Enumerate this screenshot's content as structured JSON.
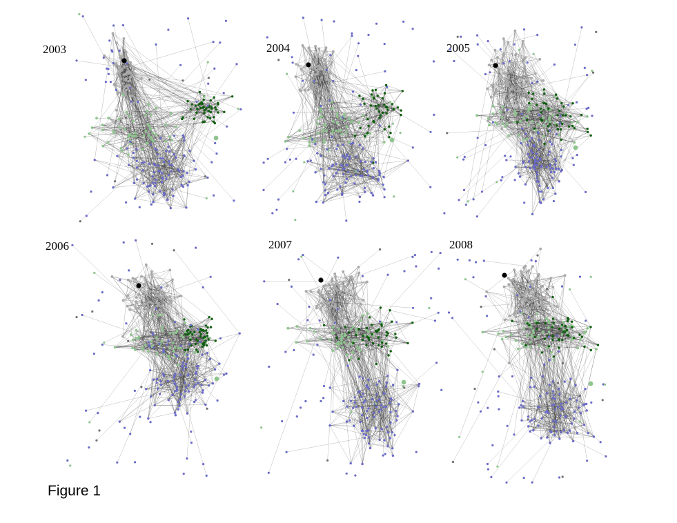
{
  "figure": {
    "caption": "Figure 1",
    "panels": [
      {
        "year": "2003"
      },
      {
        "year": "2004"
      },
      {
        "year": "2005"
      },
      {
        "year": "2006"
      },
      {
        "year": "2007"
      },
      {
        "year": "2008"
      }
    ]
  },
  "colors": {
    "edge": "#3a3a3a",
    "gray_nodes": "#a9a9a9",
    "dark_gray_nodes": "#707070",
    "light_green_nodes": "#8fc48f",
    "dark_green_nodes": "#0f5f0f",
    "blue_nodes": "#6a6ac8",
    "highlight_node": "#000000"
  }
}
